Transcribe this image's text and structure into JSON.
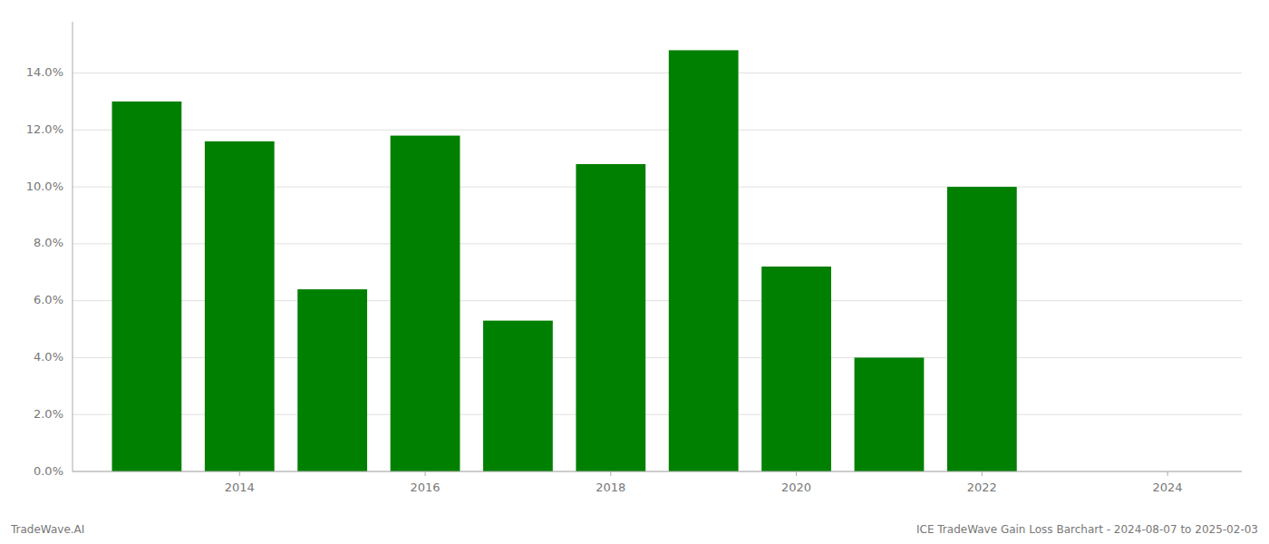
{
  "chart_data": {
    "type": "bar",
    "x": [
      2013,
      2014,
      2015,
      2016,
      2017,
      2018,
      2019,
      2020,
      2021,
      2022
    ],
    "values": [
      0.13,
      0.116,
      0.064,
      0.118,
      0.053,
      0.108,
      0.148,
      0.072,
      0.04,
      0.1
    ],
    "color": "#008000",
    "xlim": [
      2012.2,
      2024.8
    ],
    "xticks": [
      2014,
      2016,
      2018,
      2020,
      2022,
      2024
    ],
    "ylim": [
      0,
      0.158
    ],
    "yticks": [
      {
        "value": 0.0,
        "label": "0.0%"
      },
      {
        "value": 0.02,
        "label": "2.0%"
      },
      {
        "value": 0.04,
        "label": "4.0%"
      },
      {
        "value": 0.06,
        "label": "6.0%"
      },
      {
        "value": 0.08,
        "label": "8.0%"
      },
      {
        "value": 0.1,
        "label": "10.0%"
      },
      {
        "value": 0.12,
        "label": "12.0%"
      },
      {
        "value": 0.14,
        "label": "14.0%"
      }
    ],
    "grid": true,
    "annotations": [
      "TradeWave.AI",
      "ICE TradeWave Gain Loss Barchart - 2024-08-07 to 2025-02-03"
    ]
  }
}
